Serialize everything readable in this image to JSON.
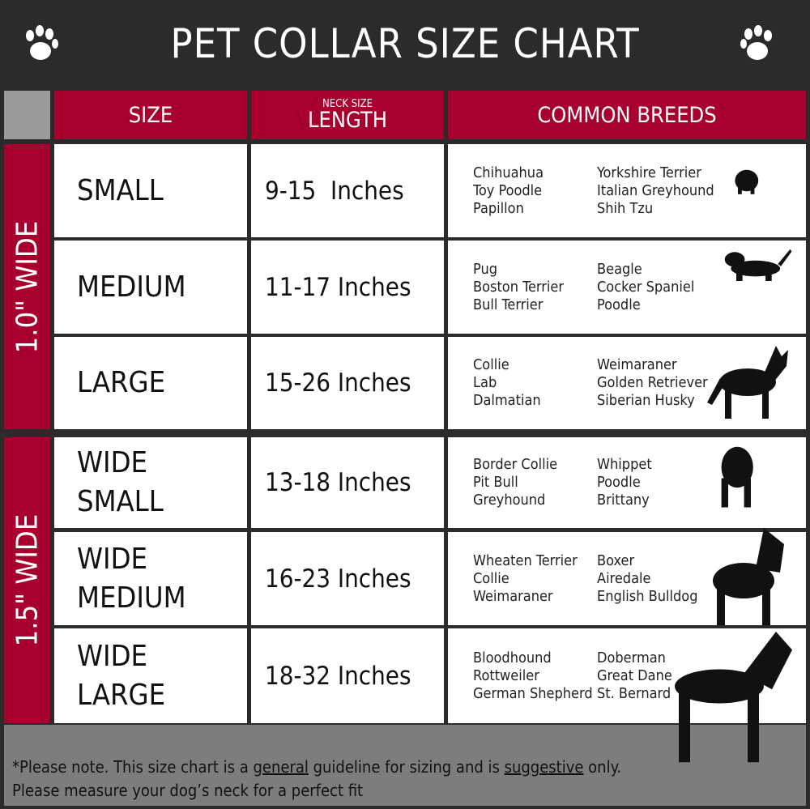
{
  "title": "PET COLLAR SIZE CHART",
  "icons": [
    "paw-icon",
    "paw-icon"
  ],
  "header": {
    "size": "SIZE",
    "length_top": "NECK SIZE",
    "length": "LENGTH",
    "breeds": "COMMON BREEDS"
  },
  "groups": [
    {
      "label": "1.0\" WIDE"
    },
    {
      "label": "1.5\" WIDE"
    }
  ],
  "rows": [
    {
      "size": "SMALL",
      "length": "9-15  Inches",
      "col1": [
        "Chihuahua",
        "Toy Poodle",
        "Papillon"
      ],
      "col2": [
        "Yorkshire Terrier",
        "Italian Greyhound",
        "Shih Tzu"
      ]
    },
    {
      "size": "MEDIUM",
      "length": "11-17 Inches",
      "col1": [
        "Pug",
        "Boston Terrier",
        "Bull Terrier"
      ],
      "col2": [
        "Beagle",
        "Cocker Spaniel",
        "Poodle"
      ]
    },
    {
      "size": "LARGE",
      "length": "15-26 Inches",
      "col1": [
        "Collie",
        "Lab",
        "Dalmatian"
      ],
      "col2": [
        "Weimaraner",
        "Golden Retriever",
        "Siberian Husky"
      ]
    },
    {
      "size": "WIDE SMALL",
      "length": "13-18 Inches",
      "col1": [
        "Border Collie",
        "Pit Bull",
        "Greyhound"
      ],
      "col2": [
        "Whippet",
        "Poodle",
        "Brittany"
      ]
    },
    {
      "size": "WIDE MEDIUM",
      "length": "16-23 Inches",
      "col1": [
        "Wheaten Terrier",
        "Collie",
        "Weimaraner"
      ],
      "col2": [
        "Boxer",
        "Airedale",
        "English Bulldog"
      ]
    },
    {
      "size": "WIDE LARGE",
      "length": "18-32 Inches",
      "col1": [
        "Bloodhound",
        "Rottweiler",
        "German Shepherd"
      ],
      "col2": [
        "Doberman",
        "Great Dane",
        "St. Bernard"
      ]
    }
  ],
  "footer": {
    "p1": "*Please note. This size chart is a ",
    "u1": "general",
    "p2": " guideline for sizing and is ",
    "u2": "suggestive",
    "p3": " only.",
    "line2": "Please measure your dog’s neck for a perfect fit"
  },
  "colors": {
    "accent": "#a8002e",
    "dark": "#2b2b2b",
    "footer": "#7d7d80"
  }
}
